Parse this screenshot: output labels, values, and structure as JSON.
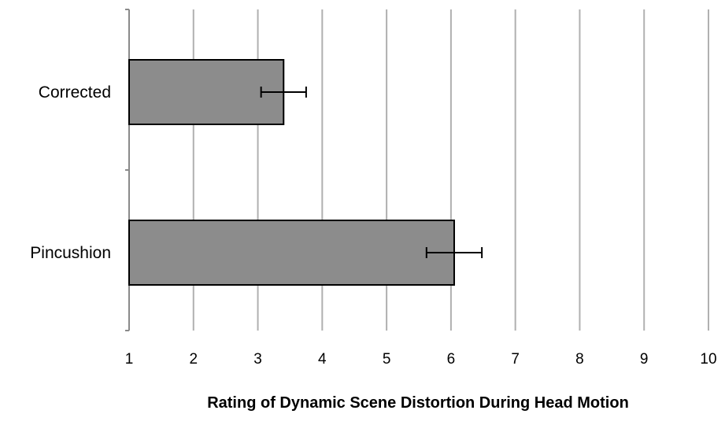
{
  "chart_data": {
    "type": "bar",
    "orientation": "horizontal",
    "title": "",
    "xlabel": "Rating of Dynamic Scene Distortion During Head Motion",
    "ylabel": "",
    "categories": [
      "Corrected",
      "Pincushion"
    ],
    "values": [
      3.4,
      6.05
    ],
    "error_low": [
      3.05,
      5.62
    ],
    "error_high": [
      3.75,
      6.48
    ],
    "xlim": [
      1,
      10
    ],
    "x_ticks": [
      "1",
      "2",
      "3",
      "4",
      "5",
      "6",
      "7",
      "8",
      "9",
      "10"
    ],
    "grid": "vertical",
    "legend": "none",
    "colors": {
      "bar_fill": "#8c8c8c",
      "bar_stroke": "#000000",
      "grid": "#b0b0b0",
      "axis": "#8a8a8a",
      "error_bar": "#000000"
    }
  }
}
